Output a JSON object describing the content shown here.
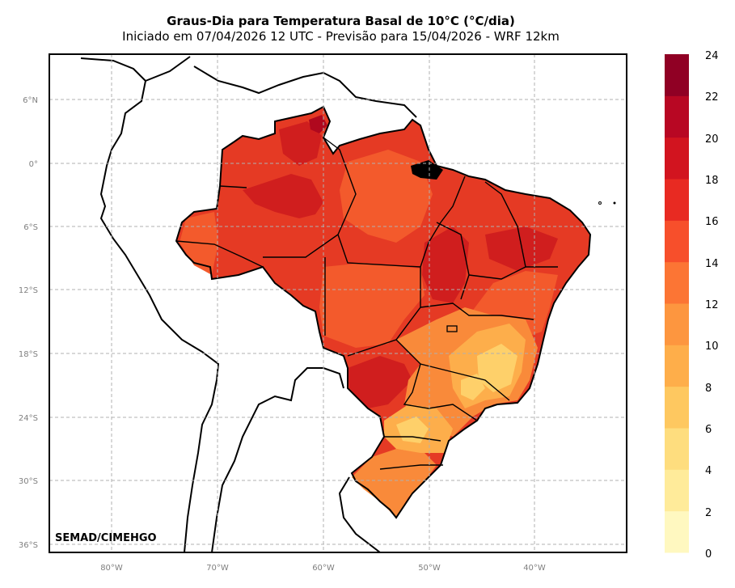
{
  "title": "Graus-Dia para Temperatura Basal de 10°C (°C/dia)",
  "subtitle": "Iniciado em 07/04/2026 12 UTC - Previsão para 15/04/2026 - WRF 12km",
  "credit": "SEMAD/CIMEHGO",
  "lat_labels": [
    "6°N",
    "0°",
    "6°S",
    "12°S",
    "18°S",
    "24°S",
    "30°S",
    "36°S"
  ],
  "lon_labels": [
    "80°W",
    "70°W",
    "60°W",
    "50°W",
    "40°W"
  ],
  "colorbar": {
    "labels": [
      "24",
      "22",
      "20",
      "18",
      "16",
      "14",
      "12",
      "10",
      "8",
      "6",
      "4",
      "2",
      "0"
    ],
    "colors": [
      "#fff8c0",
      "#ffeb9a",
      "#fedd7e",
      "#fec860",
      "#feae4a",
      "#fd963f",
      "#fc7534",
      "#f74f2b",
      "#e82a22",
      "#d2141f",
      "#b80723",
      "#900024"
    ]
  },
  "colors": {
    "north_red": "#e53a24",
    "deep_red": "#d01e1e",
    "dark_red": "#b0081e",
    "orange_red": "#f35a2c",
    "orange": "#f98a3a",
    "light_orange": "#fdae4b",
    "yellow": "#fed06a"
  }
}
